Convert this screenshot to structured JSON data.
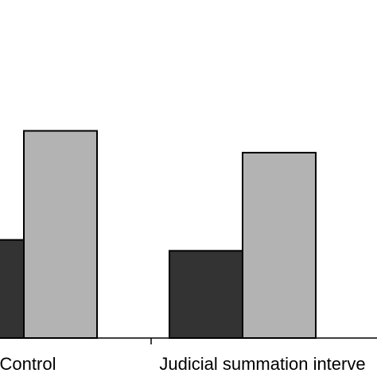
{
  "chart_data": {
    "type": "bar",
    "categories": [
      "Control",
      "Judicial summation interve"
    ],
    "series": [
      {
        "values": [
          45,
          40
        ]
      },
      {
        "values": [
          95,
          85
        ]
      }
    ],
    "ylim": [
      0,
      155
    ],
    "colors": [
      "#333333",
      "#b3b3b3"
    ],
    "edge_color": "#000000"
  }
}
